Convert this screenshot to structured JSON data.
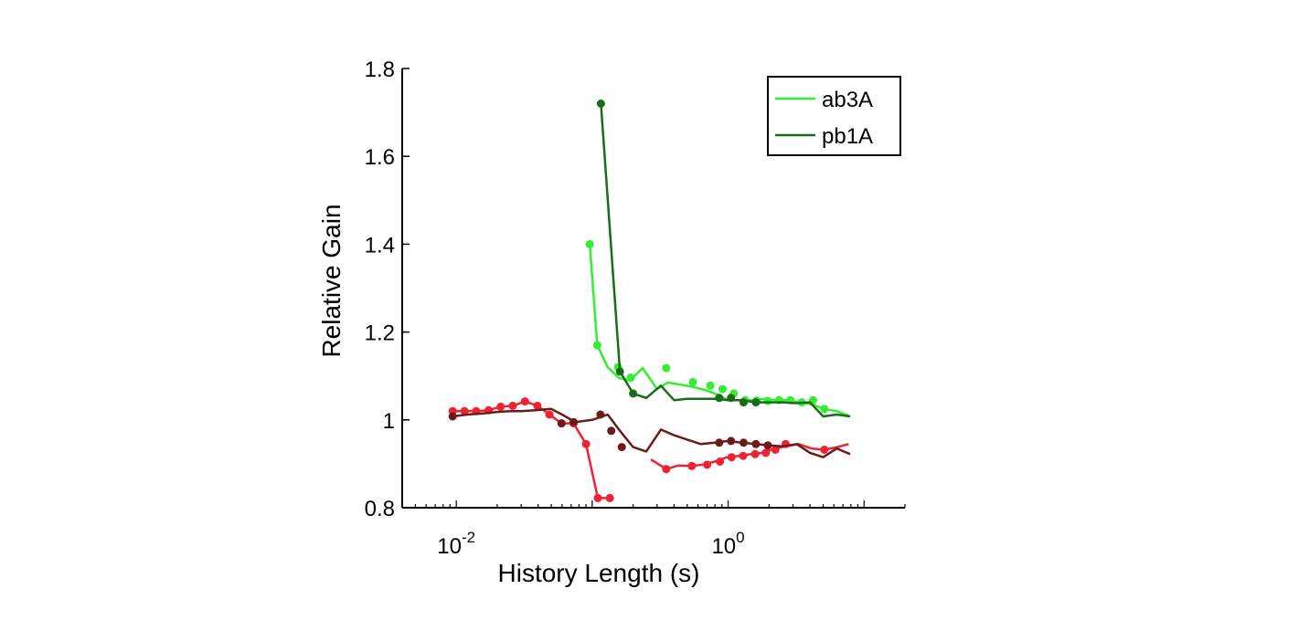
{
  "chart_data": {
    "type": "line",
    "xscale": "log",
    "xlabel": "History Length (s)",
    "ylabel": "Relative Gain",
    "xlim": [
      0.004,
      20
    ],
    "ylim": [
      0.8,
      1.8
    ],
    "xticks": [
      {
        "value": 0.01,
        "base": "10",
        "exp": "-2"
      },
      {
        "value": 1,
        "base": "10",
        "exp": "0"
      }
    ],
    "yticks": [
      {
        "value": 0.8,
        "label": "0.8"
      },
      {
        "value": 1.0,
        "label": "1"
      },
      {
        "value": 1.2,
        "label": "1.2"
      },
      {
        "value": 1.4,
        "label": "1.4"
      },
      {
        "value": 1.6,
        "label": "1.6"
      },
      {
        "value": 1.8,
        "label": "1.8"
      }
    ],
    "legend": {
      "position": "top-right"
    },
    "series": [
      {
        "name": "ab3A",
        "color": "#33ee33",
        "markers": true,
        "x": [
          0.096,
          0.109,
          0.13,
          0.158,
          0.19,
          0.235,
          0.3,
          0.36,
          0.45,
          0.55,
          0.68,
          0.83,
          1.0,
          1.23,
          1.5,
          1.85,
          2.25,
          2.75,
          3.4,
          4.15,
          5.1,
          6.25,
          7.7
        ],
        "y": [
          1.4,
          1.17,
          1.12,
          1.095,
          1.09,
          1.118,
          1.07,
          1.085,
          1.08,
          1.075,
          1.068,
          1.058,
          1.045,
          1.045,
          1.045,
          1.048,
          1.045,
          1.045,
          1.04,
          1.035,
          1.025,
          1.02,
          1.01
        ],
        "marker_x": [
          0.096,
          0.109,
          0.155,
          0.192,
          0.35,
          0.55,
          0.74,
          0.91,
          1.1,
          1.33,
          1.62,
          1.96,
          2.37,
          2.87,
          3.48,
          4.21,
          5.1
        ],
        "marker_y": [
          1.4,
          1.17,
          1.12,
          1.096,
          1.118,
          1.086,
          1.078,
          1.07,
          1.06,
          1.045,
          1.044,
          1.043,
          1.045,
          1.045,
          1.04,
          1.045,
          1.025
        ]
      },
      {
        "name": "pb1A",
        "color": "#1a6b1a",
        "markers": true,
        "x": [
          0.116,
          0.16,
          0.2,
          0.25,
          0.32,
          0.4,
          0.5,
          0.63,
          0.8,
          1.0,
          1.25,
          1.6,
          2.0,
          2.5,
          3.15,
          4.0,
          5.0,
          6.3,
          7.9
        ],
        "y": [
          1.72,
          1.11,
          1.06,
          1.05,
          1.078,
          1.045,
          1.048,
          1.048,
          1.048,
          1.045,
          1.045,
          1.04,
          1.04,
          1.04,
          1.038,
          1.04,
          1.008,
          1.012,
          1.008
        ],
        "marker_x": [
          0.116,
          0.16,
          0.2,
          0.86,
          1.05,
          1.3,
          1.6
        ],
        "marker_y": [
          1.72,
          1.11,
          1.06,
          1.05,
          1.05,
          1.04,
          1.04
        ]
      },
      {
        "color": "#ee2233",
        "markers": true,
        "x": [
          0.0094,
          0.0115,
          0.014,
          0.0173,
          0.0212,
          0.026,
          0.032,
          0.0395,
          0.0485,
          0.0595,
          0.073,
          0.09,
          0.11,
          0.135
        ],
        "y": [
          1.02,
          1.02,
          1.02,
          1.022,
          1.03,
          1.032,
          1.042,
          1.032,
          1.012,
          0.992,
          0.992,
          0.945,
          0.822,
          0.822
        ],
        "marker_x": [
          0.0094,
          0.0115,
          0.014,
          0.0173,
          0.0212,
          0.026,
          0.032,
          0.0395,
          0.0485,
          0.0595,
          0.073,
          0.09,
          0.11,
          0.135
        ],
        "marker_y": [
          1.02,
          1.02,
          1.02,
          1.022,
          1.03,
          1.032,
          1.042,
          1.032,
          1.012,
          0.992,
          0.992,
          0.945,
          0.822,
          0.822
        ]
      },
      {
        "color": "#ee2233",
        "markers": true,
        "x": [
          0.27,
          0.35,
          0.43,
          0.53,
          0.65,
          0.8,
          0.98,
          1.2,
          1.48,
          1.8,
          2.2,
          2.7,
          3.3,
          4.1,
          5.0,
          6.2,
          7.7
        ],
        "y": [
          0.91,
          0.888,
          0.896,
          0.895,
          0.898,
          0.905,
          0.915,
          0.918,
          0.922,
          0.925,
          0.935,
          0.94,
          0.945,
          0.935,
          0.932,
          0.937,
          0.945
        ],
        "marker_x": [
          0.35,
          0.54,
          0.7,
          0.87,
          1.06,
          1.29,
          1.58,
          1.89,
          2.23,
          2.65,
          5.1
        ],
        "marker_y": [
          0.888,
          0.895,
          0.898,
          0.905,
          0.915,
          0.918,
          0.922,
          0.925,
          0.932,
          0.945,
          0.932
        ]
      },
      {
        "color": "#6e1a1a",
        "markers": true,
        "x": [
          0.0094,
          0.012,
          0.016,
          0.02,
          0.025,
          0.03,
          0.038,
          0.05,
          0.06,
          0.075,
          0.1,
          0.13,
          0.16,
          0.2,
          0.25,
          0.32,
          0.4,
          0.5,
          0.63,
          0.8,
          1.0,
          1.25,
          1.6,
          2.0,
          2.5,
          3.2,
          4.0,
          5.0,
          6.3,
          7.9
        ],
        "y": [
          1.008,
          1.012,
          1.015,
          1.018,
          1.02,
          1.02,
          1.022,
          1.025,
          1.012,
          0.995,
          1.0,
          1.012,
          0.975,
          0.938,
          0.928,
          0.978,
          0.965,
          0.955,
          0.945,
          0.948,
          0.952,
          0.948,
          0.945,
          0.942,
          0.94,
          0.945,
          0.925,
          0.915,
          0.935,
          0.922
        ],
        "marker_x": [
          0.0094,
          0.0595,
          0.073,
          0.115,
          0.138,
          0.165,
          0.86,
          1.05,
          1.3,
          1.6,
          1.96
        ],
        "marker_y": [
          1.008,
          0.992,
          0.995,
          1.012,
          0.975,
          0.938,
          0.948,
          0.952,
          0.948,
          0.945,
          0.942
        ]
      }
    ]
  }
}
